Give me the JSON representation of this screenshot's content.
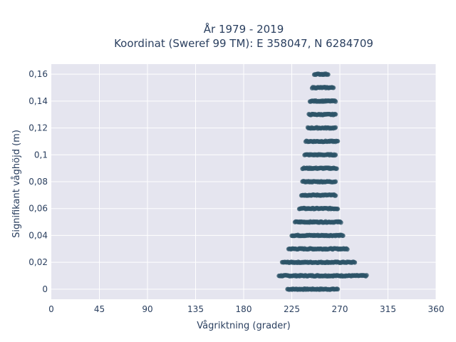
{
  "chart_data": {
    "type": "scatter",
    "title_line1": "År 1979 - 2019",
    "title_line2": "Koordinat (Sweref 99 TM): E 358047, N 6284709",
    "xlabel": "Vågriktning (grader)",
    "ylabel": "Signifikant våghöjd (m)",
    "xlim": [
      0,
      360
    ],
    "ylim": [
      -0.0075,
      0.1675
    ],
    "x_ticks": [
      0,
      45,
      90,
      135,
      180,
      225,
      270,
      315,
      360
    ],
    "x_tick_labels": [
      "0",
      "45",
      "90",
      "135",
      "180",
      "225",
      "270",
      "315",
      "360"
    ],
    "y_ticks": [
      0,
      0.02,
      0.04,
      0.06,
      0.08,
      0.1,
      0.12,
      0.14,
      0.16
    ],
    "y_tick_labels": [
      "0",
      "0,02",
      "0,04",
      "0,06",
      "0,08",
      "0,1",
      "0,12",
      "0,14",
      "0,16"
    ],
    "grid": true,
    "marker_color": "#2d5468",
    "plot_bg": "#e5e5ef",
    "series": [
      {
        "points_by_height": [
          {
            "y": 0.0,
            "x_min": 221,
            "x_max": 268
          },
          {
            "y": 0.01,
            "x_min": 213,
            "x_max": 295
          },
          {
            "y": 0.02,
            "x_min": 216,
            "x_max": 284
          },
          {
            "y": 0.03,
            "x_min": 222,
            "x_max": 277
          },
          {
            "y": 0.04,
            "x_min": 225,
            "x_max": 273
          },
          {
            "y": 0.05,
            "x_min": 228,
            "x_max": 271
          },
          {
            "y": 0.06,
            "x_min": 232,
            "x_max": 268
          },
          {
            "y": 0.07,
            "x_min": 234,
            "x_max": 266
          },
          {
            "y": 0.08,
            "x_min": 235,
            "x_max": 266
          },
          {
            "y": 0.09,
            "x_min": 235,
            "x_max": 267
          },
          {
            "y": 0.1,
            "x_min": 237,
            "x_max": 266
          },
          {
            "y": 0.11,
            "x_min": 238,
            "x_max": 268
          },
          {
            "y": 0.12,
            "x_min": 240,
            "x_max": 266
          },
          {
            "y": 0.13,
            "x_min": 241,
            "x_max": 266
          },
          {
            "y": 0.14,
            "x_min": 242,
            "x_max": 266
          },
          {
            "y": 0.15,
            "x_min": 244,
            "x_max": 264
          },
          {
            "y": 0.16,
            "x_min": 246,
            "x_max": 259
          }
        ]
      }
    ]
  }
}
